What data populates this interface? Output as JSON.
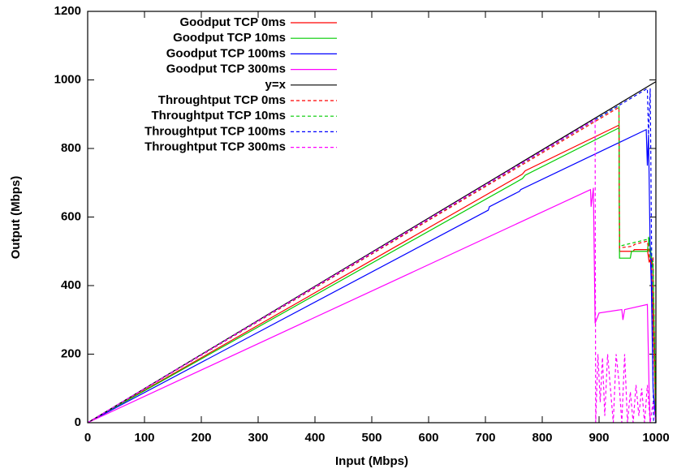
{
  "chart_data": {
    "type": "line",
    "xlabel": "Input (Mbps)",
    "ylabel": "Output (Mbps)",
    "xlim": [
      0,
      1000
    ],
    "ylim": [
      0,
      1200
    ],
    "xticks": [
      0,
      100,
      200,
      300,
      400,
      500,
      600,
      700,
      800,
      900,
      1000
    ],
    "yticks": [
      0,
      200,
      400,
      600,
      800,
      1000,
      1200
    ],
    "legend": "top-left",
    "series": [
      {
        "name": "Goodput TCP 0ms",
        "color": "#ff0000",
        "dash": false,
        "x": [
          0,
          765,
          770,
          935,
          936,
          960,
          962,
          985,
          988,
          992,
          995,
          1000
        ],
        "values": [
          0,
          725,
          735,
          868,
          500,
          500,
          505,
          505,
          470,
          480,
          300,
          0
        ]
      },
      {
        "name": "Goodput TCP 10ms",
        "color": "#00cc00",
        "dash": false,
        "x": [
          0,
          765,
          770,
          935,
          936,
          955,
          957,
          985,
          988,
          995,
          1000
        ],
        "values": [
          0,
          712,
          722,
          860,
          480,
          480,
          500,
          500,
          540,
          450,
          0
        ]
      },
      {
        "name": "Goodput TCP 100ms",
        "color": "#0000ff",
        "dash": false,
        "x": [
          0,
          705,
          707,
          760,
          762,
          983,
          985,
          987,
          990,
          992,
          995,
          1000
        ],
        "values": [
          0,
          620,
          630,
          675,
          680,
          855,
          750,
          840,
          500,
          400,
          100,
          0
        ]
      },
      {
        "name": "Goodput TCP 300ms",
        "color": "#ff00ff",
        "dash": false,
        "x": [
          0,
          885,
          886,
          890,
          893,
          900,
          940,
          942,
          945,
          985,
          988,
          990
        ],
        "values": [
          0,
          680,
          630,
          685,
          290,
          320,
          330,
          300,
          330,
          345,
          100,
          0
        ]
      },
      {
        "name": "y=x",
        "color": "#000000",
        "dash": false,
        "x": [
          0,
          1000
        ],
        "values": [
          0,
          995
        ]
      },
      {
        "name": "Throughtput TCP 0ms",
        "color": "#ff0000",
        "dash": true,
        "x": [
          0,
          935,
          936,
          960,
          962,
          985,
          990,
          995,
          1000
        ],
        "values": [
          0,
          920,
          510,
          515,
          520,
          530,
          470,
          480,
          0
        ]
      },
      {
        "name": "Throughtput TCP 10ms",
        "color": "#00cc00",
        "dash": true,
        "x": [
          0,
          935,
          936,
          985,
          987,
          990,
          995,
          1000
        ],
        "values": [
          0,
          925,
          515,
          535,
          540,
          480,
          470,
          0
        ]
      },
      {
        "name": "Throughtput TCP 100ms",
        "color": "#0000ff",
        "dash": true,
        "x": [
          0,
          985,
          987,
          990,
          993,
          996,
          1000
        ],
        "values": [
          0,
          975,
          840,
          975,
          400,
          0,
          0
        ]
      },
      {
        "name": "Throughtput TCP 300ms",
        "color": "#ff00ff",
        "dash": true,
        "x": [
          0,
          893,
          894,
          898,
          902,
          906,
          910,
          915,
          920,
          925,
          930,
          935,
          940,
          945,
          950,
          955,
          960,
          965,
          970,
          975,
          980,
          985,
          990,
          995,
          1000
        ],
        "values": [
          0,
          885,
          0,
          200,
          60,
          190,
          20,
          200,
          100,
          0,
          200,
          120,
          0,
          200,
          0,
          90,
          0,
          110,
          20,
          100,
          0,
          110,
          0,
          60,
          0
        ]
      }
    ]
  }
}
